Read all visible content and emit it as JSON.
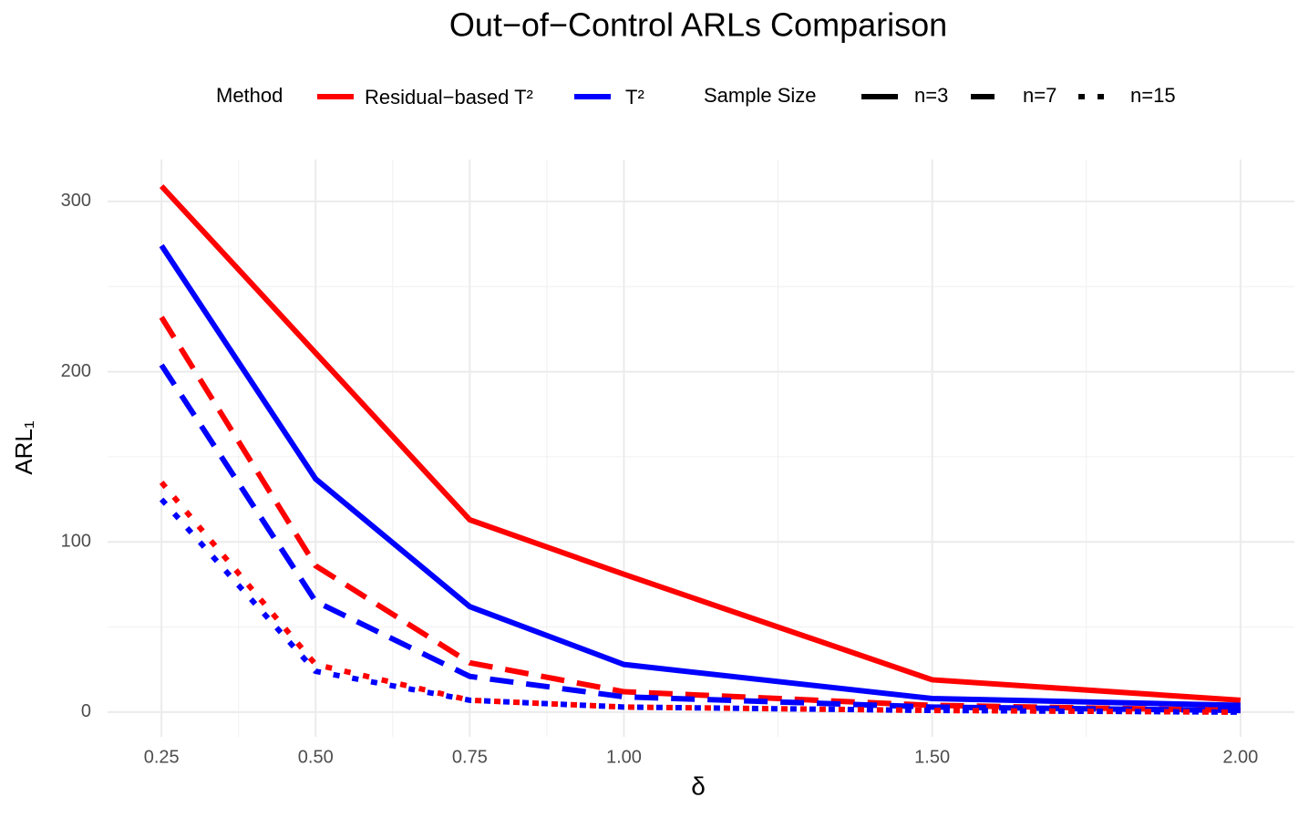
{
  "chart_data": {
    "type": "line",
    "title": "Out−of−Control ARLs Comparison",
    "x_label": "δ",
    "y_label": "ARL₁",
    "x": [
      0.25,
      0.5,
      0.75,
      1.0,
      1.5,
      2.0
    ],
    "xlim": [
      0.1625,
      2.0875
    ],
    "ylim": [
      -14.5,
      324.6
    ],
    "xticks": [
      {
        "value": 0.25,
        "label": "0.25"
      },
      {
        "value": 0.5,
        "label": "0.50"
      },
      {
        "value": 0.75,
        "label": "0.75"
      },
      {
        "value": 1.0,
        "label": "1.00"
      },
      {
        "value": 1.5,
        "label": "1.50"
      },
      {
        "value": 2.0,
        "label": "2.00"
      }
    ],
    "yticks": [
      0,
      100,
      200,
      300
    ],
    "grid": true,
    "legend": {
      "method_title": "Method",
      "methods": [
        {
          "name": "Residual−based T²",
          "color": "#ff0000"
        },
        {
          "name": "T²",
          "color": "#0000ff"
        }
      ],
      "size_title": "Sample Size",
      "sizes": [
        {
          "name": "n=3",
          "dash": "solid"
        },
        {
          "name": "n=7",
          "dash": "dashed"
        },
        {
          "name": "n=15",
          "dash": "dotted"
        }
      ]
    },
    "series": [
      {
        "method": "Residual−based T²",
        "sample_size": "n=3",
        "values": [
          309,
          211,
          113,
          81,
          19,
          7
        ]
      },
      {
        "method": "T²",
        "sample_size": "n=3",
        "values": [
          274,
          137,
          62,
          28,
          8,
          4
        ]
      },
      {
        "method": "Residual−based T²",
        "sample_size": "n=7",
        "values": [
          232,
          86,
          29,
          12,
          4,
          1
        ]
      },
      {
        "method": "T²",
        "sample_size": "n=7",
        "values": [
          204,
          65,
          21,
          9,
          3,
          1
        ]
      },
      {
        "method": "Residual−based T²",
        "sample_size": "n=15",
        "values": [
          135,
          28,
          7,
          3,
          1,
          0
        ]
      },
      {
        "method": "T²",
        "sample_size": "n=15",
        "values": [
          125,
          24,
          7,
          3,
          1,
          0
        ]
      }
    ]
  }
}
